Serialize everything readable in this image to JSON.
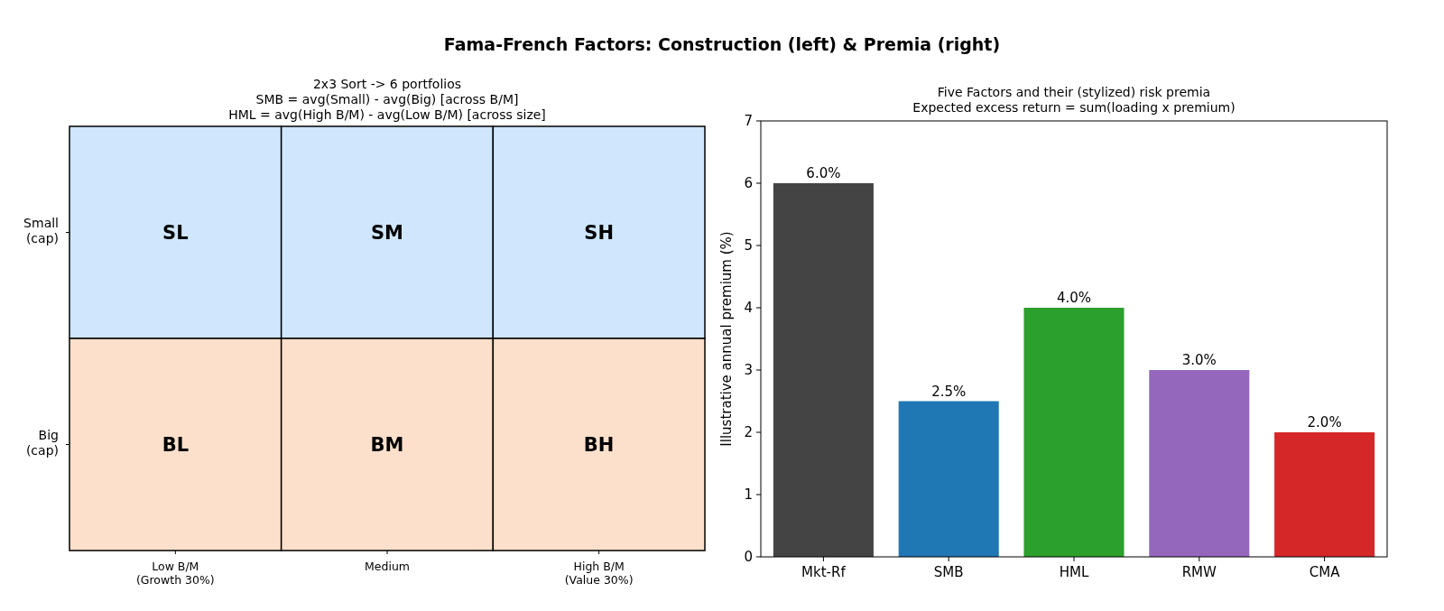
{
  "chart_data": [
    {
      "type": "other",
      "title": "Fama-French Factors: Construction (left) & Premia (right)",
      "subtitle": "2x3 Sort -> 6 portfolios\nSMB = avg(Small) - avg(Big) [across B/M]\nHML = avg(High B/M) - avg(Low B/M) [across size]",
      "categories": [
        "Low B/M\n(Growth 30%)",
        "Medium",
        "High B/M\n(Value 30%)"
      ],
      "y_categories": [
        "Small\n(cap)",
        "Big\n(cap)"
      ],
      "cell_labels": [
        [
          "SL",
          "SM",
          "SH"
        ],
        [
          "BL",
          "BM",
          "BH"
        ]
      ],
      "colors": [
        "#cfe6fd",
        "#fde0cb"
      ]
    },
    {
      "type": "bar",
      "title": "Five Factors and their (stylized) risk premia\nExpected excess return = sum(loading x premium)",
      "ylabel": "Illustrative annual premium (%)",
      "categories": [
        "Mkt-Rf",
        "SMB",
        "HML",
        "RMW",
        "CMA"
      ],
      "values": [
        6.0,
        2.5,
        4.0,
        3.0,
        2.0
      ],
      "colors": [
        "#444444",
        "#1f77b4",
        "#2ca02c",
        "#9467bd",
        "#d62728"
      ],
      "value_labels": [
        "6.0%",
        "2.5%",
        "4.0%",
        "3.0%",
        "2.0%"
      ],
      "ylim": [
        0,
        7
      ],
      "yticks": [
        0,
        1,
        2,
        3,
        4,
        5,
        6,
        7
      ],
      "grid": false
    }
  ]
}
